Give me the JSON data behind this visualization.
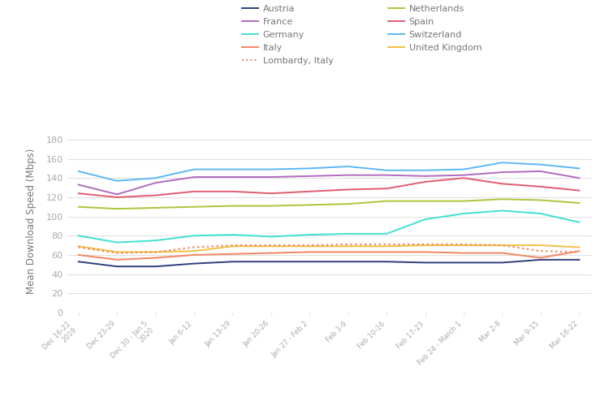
{
  "x_labels": [
    "Dec 16-22\n2019",
    "Dec 23-29",
    "Dec 30 - Jan 5\n2020",
    "Jan 6-12",
    "Jan 13-19",
    "Jan 20-26",
    "Jan 27 - Feb 2",
    "Feb 3-9",
    "Feb 10-16",
    "Feb 17-23",
    "Feb 24 - March 1",
    "Mar 2-8",
    "Mar 9-15",
    "Mar 16-22"
  ],
  "series": {
    "Austria": {
      "color": "#2e3f7c",
      "linestyle": "solid",
      "linewidth": 1.4,
      "values": [
        53,
        48,
        48,
        51,
        53,
        53,
        53,
        53,
        53,
        52,
        52,
        52,
        55,
        55
      ]
    },
    "France": {
      "color": "#b06abf",
      "linestyle": "solid",
      "linewidth": 1.4,
      "values": [
        133,
        123,
        135,
        141,
        141,
        141,
        142,
        143,
        143,
        142,
        143,
        146,
        147,
        140
      ]
    },
    "Germany": {
      "color": "#40e0d0",
      "linestyle": "solid",
      "linewidth": 1.4,
      "values": [
        80,
        73,
        75,
        80,
        81,
        79,
        81,
        82,
        82,
        97,
        103,
        106,
        103,
        94
      ]
    },
    "Italy": {
      "color": "#f4845f",
      "linestyle": "solid",
      "linewidth": 1.4,
      "values": [
        60,
        55,
        57,
        60,
        61,
        62,
        63,
        63,
        63,
        63,
        62,
        62,
        57,
        64
      ]
    },
    "Netherlands": {
      "color": "#a8c73b",
      "linestyle": "solid",
      "linewidth": 1.4,
      "values": [
        110,
        108,
        109,
        110,
        111,
        111,
        112,
        113,
        116,
        116,
        116,
        118,
        117,
        114
      ]
    },
    "Spain": {
      "color": "#e05c6e",
      "linestyle": "solid",
      "linewidth": 1.4,
      "values": [
        124,
        120,
        122,
        126,
        126,
        124,
        126,
        128,
        129,
        136,
        140,
        134,
        131,
        127
      ]
    },
    "Switzerland": {
      "color": "#5bb8f5",
      "linestyle": "solid",
      "linewidth": 1.4,
      "values": [
        147,
        137,
        140,
        149,
        149,
        149,
        150,
        152,
        148,
        148,
        149,
        156,
        154,
        150
      ]
    },
    "United Kingdom": {
      "color": "#f0c040",
      "linestyle": "solid",
      "linewidth": 1.4,
      "values": [
        69,
        63,
        63,
        64,
        69,
        69,
        69,
        69,
        69,
        70,
        70,
        70,
        70,
        68
      ]
    },
    "Lombardy, Italy": {
      "color": "#f4845f",
      "linestyle": "dotted",
      "linewidth": 1.6,
      "values": [
        68,
        62,
        63,
        68,
        70,
        70,
        70,
        71,
        71,
        71,
        71,
        70,
        64,
        63
      ]
    }
  },
  "legend_left": [
    "Austria",
    "France",
    "Germany",
    "Italy",
    "Lombardy, Italy"
  ],
  "legend_right": [
    "Netherlands",
    "Spain",
    "Switzerland",
    "United Kingdom"
  ],
  "ylabel": "Mean Download Speed (Mbps)",
  "ylim": [
    0,
    190
  ],
  "yticks": [
    0,
    20,
    40,
    60,
    80,
    100,
    120,
    140,
    160,
    180
  ],
  "background_color": "#ffffff",
  "grid_color": "#e0e0e0",
  "label_color": "#aaaaaa",
  "text_color": "#777777"
}
